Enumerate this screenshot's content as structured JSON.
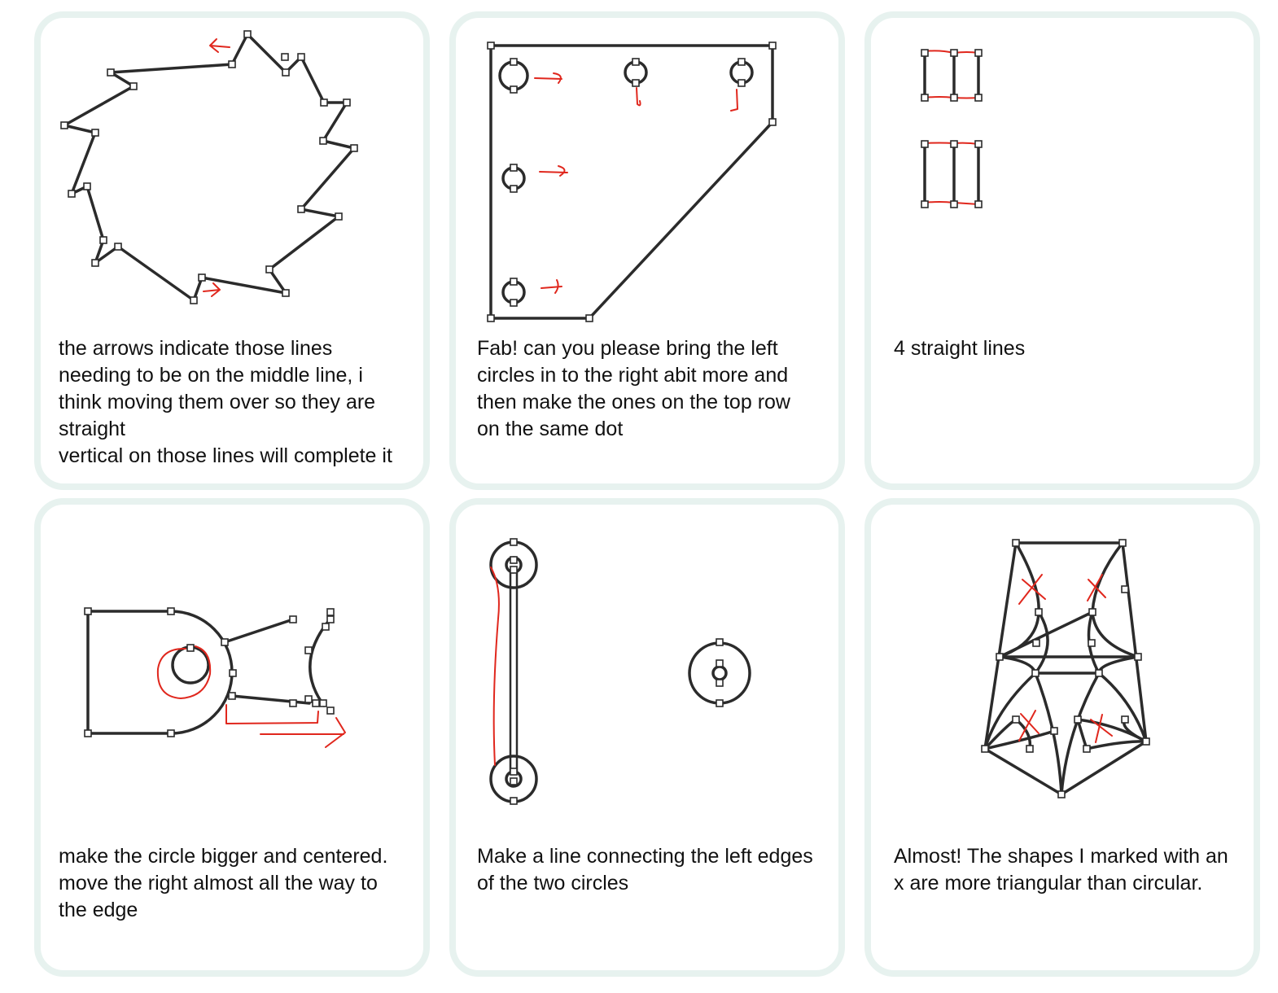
{
  "cards": [
    {
      "id": "card-1",
      "caption": "the arrows indicate those lines\nneeding to be on the middle line, i\nthink moving them over so they are\nstraight\nvertical on those lines will complete it"
    },
    {
      "id": "card-2",
      "caption": "Fab! can you please bring the left\ncircles in to the right abit more and\nthen make the ones on the top row\non the same dot"
    },
    {
      "id": "card-3",
      "caption": "4 straight lines"
    },
    {
      "id": "card-4",
      "caption": "make the circle bigger and centered.\nmove the right almost all the way to\nthe edge"
    },
    {
      "id": "card-5",
      "caption": "Make a line connecting the left edges\nof the two circles"
    },
    {
      "id": "card-6",
      "caption": "Almost! The shapes I marked with an\nx are more triangular than circular."
    }
  ],
  "colors": {
    "card_border": "#e7f2ef",
    "stroke": "#2b2b2b",
    "annotation_red": "#e0271d"
  }
}
